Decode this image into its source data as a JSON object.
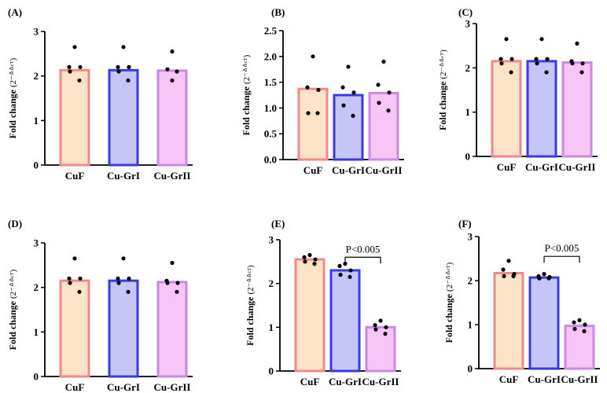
{
  "colors": {
    "CuF": {
      "fill": "#fde3c8",
      "stroke": "#f08a8a"
    },
    "Cu-GrI": {
      "fill": "#c5c5f8",
      "stroke": "#3a3ae0"
    },
    "Cu-GrII": {
      "fill": "#f7c6f7",
      "stroke": "#c98ae0"
    },
    "point": "#000000",
    "axis": "#000000"
  },
  "chart_data": [
    {
      "panel": "(A)",
      "type": "bar",
      "categories": [
        "CuF",
        "Cu-GrI",
        "Cu-GrII"
      ],
      "values": [
        2.13,
        2.13,
        2.12
      ],
      "points": [
        [
          2.65,
          2.2,
          2.2,
          2.1,
          1.9
        ],
        [
          2.65,
          2.2,
          2.2,
          2.1,
          1.9
        ],
        [
          2.55,
          2.15,
          2.1,
          1.9
        ]
      ],
      "ylabel_main": "Fold change ",
      "ylabel_sup": "(2⁻ᐞᐞᶜᵀ)",
      "ylim": [
        0,
        3
      ],
      "yticks": [
        0,
        1,
        2,
        3
      ],
      "tick_labels": [
        "0",
        "1",
        "2",
        "3"
      ],
      "annotation": null
    },
    {
      "panel": "(B)",
      "type": "bar",
      "categories": [
        "CuF",
        "Cu-GrI",
        "Cu-GrII"
      ],
      "values": [
        1.37,
        1.25,
        1.29
      ],
      "points": [
        [
          2.0,
          1.4,
          1.35,
          0.9,
          0.9
        ],
        [
          1.8,
          1.4,
          1.3,
          1.05,
          0.85
        ],
        [
          1.9,
          1.45,
          1.3,
          1.1,
          0.95
        ]
      ],
      "ylabel_main": "Fold change ",
      "ylabel_sup": "(2⁻ᐞᐞᶜᵀ)",
      "ylim": [
        0,
        2.5
      ],
      "yticks": [
        0,
        0.5,
        1,
        1.5,
        2,
        2.5
      ],
      "tick_labels": [
        "0.0",
        "0.5",
        "1.0",
        "1.5",
        "2.0",
        "2.5"
      ],
      "annotation": null
    },
    {
      "panel": "(C)",
      "type": "bar",
      "categories": [
        "CuF",
        "Cu-GrI",
        "Cu-GrII"
      ],
      "values": [
        2.15,
        2.15,
        2.12
      ],
      "points": [
        [
          2.65,
          2.2,
          2.2,
          2.1,
          1.9
        ],
        [
          2.65,
          2.2,
          2.2,
          2.1,
          1.9
        ],
        [
          2.55,
          2.15,
          2.1,
          2.1,
          1.9
        ]
      ],
      "ylabel_main": "Fold change ",
      "ylabel_sup": "(2⁻ᐞᐞᶜᵀ)",
      "ylim": [
        0,
        3
      ],
      "yticks": [
        0,
        1,
        2,
        3
      ],
      "tick_labels": [
        "0",
        "1",
        "2",
        "3"
      ],
      "annotation": null
    },
    {
      "panel": "(D)",
      "type": "bar",
      "categories": [
        "CuF",
        "Cu-GrI",
        "Cu-GrII"
      ],
      "values": [
        2.15,
        2.15,
        2.12
      ],
      "points": [
        [
          2.65,
          2.2,
          2.2,
          2.1,
          1.9
        ],
        [
          2.65,
          2.2,
          2.2,
          2.1,
          1.9
        ],
        [
          2.55,
          2.15,
          2.1,
          2.1,
          1.9
        ]
      ],
      "ylabel_main": "Fold change ",
      "ylabel_sup": "(2⁻ᐞᐞᶜᵀ)",
      "ylim": [
        0,
        3
      ],
      "yticks": [
        0,
        1,
        2,
        3
      ],
      "tick_labels": [
        "0",
        "1",
        "2",
        "3"
      ],
      "annotation": null
    },
    {
      "panel": "(E)",
      "type": "bar",
      "categories": [
        "CuF",
        "Cu-GrI",
        "Cu-GrII"
      ],
      "values": [
        2.55,
        2.3,
        1.0
      ],
      "points": [
        [
          2.65,
          2.6,
          2.55,
          2.5,
          2.45
        ],
        [
          2.45,
          2.4,
          2.3,
          2.2,
          2.15
        ],
        [
          1.15,
          1.05,
          1.0,
          0.95,
          0.85
        ]
      ],
      "ylabel_main": "Fold change ",
      "ylabel_sup": "(2⁻ᐞᐞᶜᵀ)",
      "ylim": [
        0,
        3
      ],
      "yticks": [
        0,
        1,
        2,
        3
      ],
      "tick_labels": [
        "0",
        "1",
        "2",
        "3"
      ],
      "annotation": {
        "text": "P<0.005",
        "from": 1,
        "to": 2,
        "y": 2.6
      }
    },
    {
      "panel": "(F)",
      "type": "bar",
      "categories": [
        "CuF",
        "Cu-GrI",
        "Cu-GrII"
      ],
      "values": [
        2.17,
        2.07,
        0.97
      ],
      "points": [
        [
          2.45,
          2.25,
          2.15,
          2.1,
          2.1
        ],
        [
          2.15,
          2.1,
          2.08,
          2.05,
          2.05
        ],
        [
          1.1,
          1.05,
          1.0,
          0.9,
          0.85
        ]
      ],
      "ylabel_main": "Fold change ",
      "ylabel_sup": "(2⁻ᐞᐞᶜᵀ)",
      "ylim": [
        0,
        3
      ],
      "yticks": [
        0,
        1,
        2,
        3
      ],
      "tick_labels": [
        "0",
        "1",
        "2",
        "3"
      ],
      "annotation": {
        "text": "P<0.005",
        "from": 1,
        "to": 2,
        "y": 2.55
      }
    }
  ]
}
